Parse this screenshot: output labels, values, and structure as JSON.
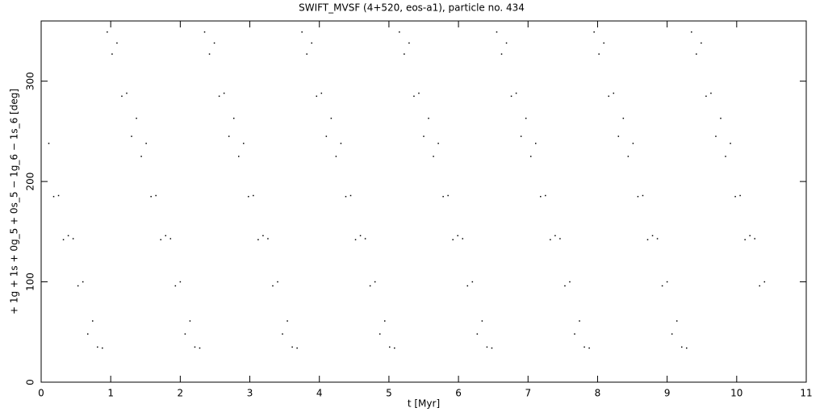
{
  "chart_data": {
    "type": "scatter",
    "title": "SWIFT_MVSF (4+520, eos-a1), particle no. 434",
    "x_label": "t [Myr]",
    "y_label": "+ 1g + 1s + 0g_5 + 0s_5 − 1g_6 − 1s_6 [deg]",
    "xlim": [
      0,
      11
    ],
    "ylim": [
      0,
      360
    ],
    "xticks": [
      0,
      1,
      2,
      3,
      4,
      5,
      6,
      7,
      8,
      9,
      10,
      11
    ],
    "yticks": [
      0,
      100,
      200,
      300
    ],
    "series": [
      {
        "color": "#000000",
        "x": [
          0.11,
          0.18,
          0.25,
          0.32,
          0.39,
          0.46,
          0.53,
          0.6,
          0.67,
          0.74,
          0.81,
          0.88,
          0.95,
          1.02,
          1.09,
          1.16,
          1.23,
          1.3,
          1.37,
          1.44,
          1.51,
          1.58,
          1.65,
          1.72,
          1.79,
          1.86,
          1.93,
          2.0,
          2.07,
          2.14,
          2.21,
          2.28,
          2.35,
          2.42,
          2.49,
          2.56,
          2.63,
          2.7,
          2.77,
          2.84,
          2.91,
          2.98,
          3.05,
          3.12,
          3.19,
          3.26,
          3.33,
          3.4,
          3.47,
          3.54,
          3.61,
          3.68,
          3.75,
          3.82,
          3.89,
          3.96,
          4.03,
          4.1,
          4.17,
          4.24,
          4.31,
          4.38,
          4.45,
          4.52,
          4.59,
          4.66,
          4.73,
          4.8,
          4.87,
          4.94,
          5.01,
          5.08,
          5.15,
          5.22,
          5.29,
          5.36,
          5.43,
          5.5,
          5.57,
          5.64,
          5.71,
          5.78,
          5.85,
          5.92,
          5.99,
          6.06,
          6.13,
          6.2,
          6.27,
          6.34,
          6.41,
          6.48,
          6.55,
          6.62,
          6.69,
          6.76,
          6.83,
          6.9,
          6.97,
          7.04,
          7.11,
          7.18,
          7.25,
          7.32,
          7.39,
          7.46,
          7.53,
          7.6,
          7.67,
          7.74,
          7.81,
          7.88,
          7.95,
          8.02,
          8.09,
          8.16,
          8.23,
          8.3,
          8.37,
          8.44,
          8.51,
          8.58,
          8.65,
          8.72,
          8.79,
          8.86,
          8.93,
          9.0,
          9.07,
          9.14,
          9.21,
          9.28,
          9.35,
          9.42,
          9.49,
          9.56,
          9.63,
          9.7,
          9.77,
          9.84,
          9.91,
          9.98,
          10.05,
          10.12,
          10.19,
          10.26,
          10.33,
          10.4
        ],
        "values": [
          238,
          185,
          186,
          142,
          146,
          143,
          96,
          100,
          48,
          61,
          35,
          34,
          349,
          327,
          338,
          285,
          288,
          245,
          263,
          225,
          238,
          185,
          186,
          142,
          146,
          143,
          96,
          100,
          48,
          61,
          35,
          34,
          349,
          327,
          338,
          285,
          288,
          245,
          263,
          225,
          238,
          185,
          186,
          142,
          146,
          143,
          96,
          100,
          48,
          61,
          35,
          34,
          349,
          327,
          338,
          285,
          288,
          245,
          263,
          225,
          238,
          185,
          186,
          142,
          146,
          143,
          96,
          100,
          48,
          61,
          35,
          34,
          349,
          327,
          338,
          285,
          288,
          245,
          263,
          225,
          238,
          185,
          186,
          142,
          146,
          143,
          96,
          100,
          48,
          61,
          35,
          34,
          349,
          327,
          338,
          285,
          288,
          245,
          263,
          225,
          238,
          185,
          186,
          142,
          146,
          143,
          96,
          100,
          48,
          61,
          35,
          34,
          349,
          327,
          338,
          285,
          288,
          245,
          263,
          225,
          238,
          185,
          186,
          142,
          146,
          143,
          96,
          100,
          48,
          61,
          35,
          34,
          349,
          327,
          338,
          285,
          288,
          245,
          263,
          225,
          238,
          185,
          186,
          142,
          146,
          143,
          96,
          100
        ]
      }
    ]
  }
}
